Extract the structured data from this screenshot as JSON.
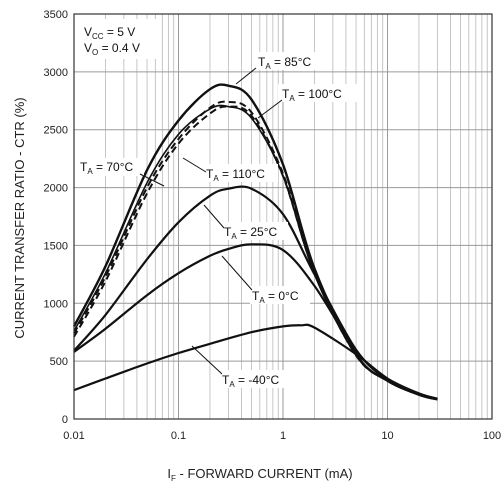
{
  "chart_data": {
    "type": "line",
    "xlabel_main": "I",
    "xlabel_sub": "F",
    "xlabel_rest": " - FORWARD CURRENT (mA)",
    "ylabel": "CURRENT TRANSFER RATIO - CTR (%)",
    "x_scale": "log",
    "xlim": [
      0.01,
      100
    ],
    "ylim": [
      0,
      3500
    ],
    "x_ticks": [
      "0.01",
      "0.1",
      "1",
      "10",
      "100"
    ],
    "y_ticks": [
      "0",
      "500",
      "1000",
      "1500",
      "2000",
      "2500",
      "3000",
      "3500"
    ],
    "grid": true,
    "conditions": [
      {
        "main": "V",
        "sub": "CC",
        "rest": " = 5 V"
      },
      {
        "main": "V",
        "sub": "O",
        "rest": " = 0.4 V"
      }
    ],
    "series": [
      {
        "label_main": "T",
        "label_sub": "A",
        "label_rest": " = 85°C",
        "style": "solid",
        "width": 2.4,
        "x": [
          0.01,
          0.02,
          0.05,
          0.1,
          0.2,
          0.3,
          0.5,
          1,
          2,
          5,
          10,
          20,
          30
        ],
        "y": [
          800,
          1320,
          2150,
          2580,
          2850,
          2880,
          2760,
          2200,
          1300,
          560,
          330,
          210,
          170
        ]
      },
      {
        "label_main": "T",
        "label_sub": "A",
        "label_rest": " = 100°C",
        "style": "solid",
        "width": 1.6,
        "x": [
          0.01,
          0.02,
          0.05,
          0.1,
          0.2,
          0.3,
          0.5,
          1,
          2,
          5,
          10,
          20,
          30
        ],
        "y": [
          760,
          1260,
          2040,
          2460,
          2680,
          2700,
          2600,
          2100,
          1250,
          550,
          330,
          210,
          170
        ]
      },
      {
        "label_main": "T",
        "label_sub": "A",
        "label_rest": " = 70°C",
        "style": "dashed",
        "width": 2.0,
        "x": [
          0.01,
          0.02,
          0.05,
          0.1,
          0.2,
          0.3,
          0.5,
          1,
          2,
          5,
          10,
          20,
          30
        ],
        "y": [
          740,
          1230,
          2000,
          2420,
          2690,
          2740,
          2650,
          2120,
          1270,
          555,
          330,
          210,
          170
        ]
      },
      {
        "label_main": "T",
        "label_sub": "A",
        "label_rest": " = 110°C",
        "style": "dashed",
        "width": 2.0,
        "x": [
          0.01,
          0.02,
          0.05,
          0.1,
          0.2,
          0.3,
          0.5,
          1,
          2,
          5,
          10,
          20,
          30
        ],
        "y": [
          710,
          1190,
          1950,
          2380,
          2640,
          2700,
          2620,
          2100,
          1260,
          550,
          330,
          210,
          170
        ]
      },
      {
        "label_main": "T",
        "label_sub": "A",
        "label_rest": " = 25°C",
        "style": "solid",
        "width": 2.2,
        "x": [
          0.01,
          0.02,
          0.05,
          0.1,
          0.2,
          0.3,
          0.5,
          1,
          2,
          5,
          10,
          20,
          30
        ],
        "y": [
          590,
          900,
          1380,
          1700,
          1930,
          1990,
          1990,
          1770,
          1250,
          600,
          340,
          220,
          175
        ]
      },
      {
        "label_main": "T",
        "label_sub": "A",
        "label_rest": " = 0°C",
        "style": "solid",
        "width": 2.2,
        "x": [
          0.01,
          0.02,
          0.05,
          0.1,
          0.2,
          0.3,
          0.5,
          1,
          2,
          5,
          10,
          20,
          30
        ],
        "y": [
          580,
          780,
          1070,
          1260,
          1410,
          1470,
          1510,
          1460,
          1150,
          590,
          340,
          220,
          175
        ]
      },
      {
        "label_main": "T",
        "label_sub": "A",
        "label_rest": " = -40°C",
        "style": "solid",
        "width": 2.2,
        "x": [
          0.01,
          0.02,
          0.05,
          0.1,
          0.2,
          0.5,
          1,
          1.5,
          2,
          5,
          10,
          20,
          30
        ],
        "y": [
          250,
          350,
          480,
          570,
          650,
          750,
          800,
          810,
          790,
          560,
          350,
          220,
          170
        ]
      }
    ]
  }
}
